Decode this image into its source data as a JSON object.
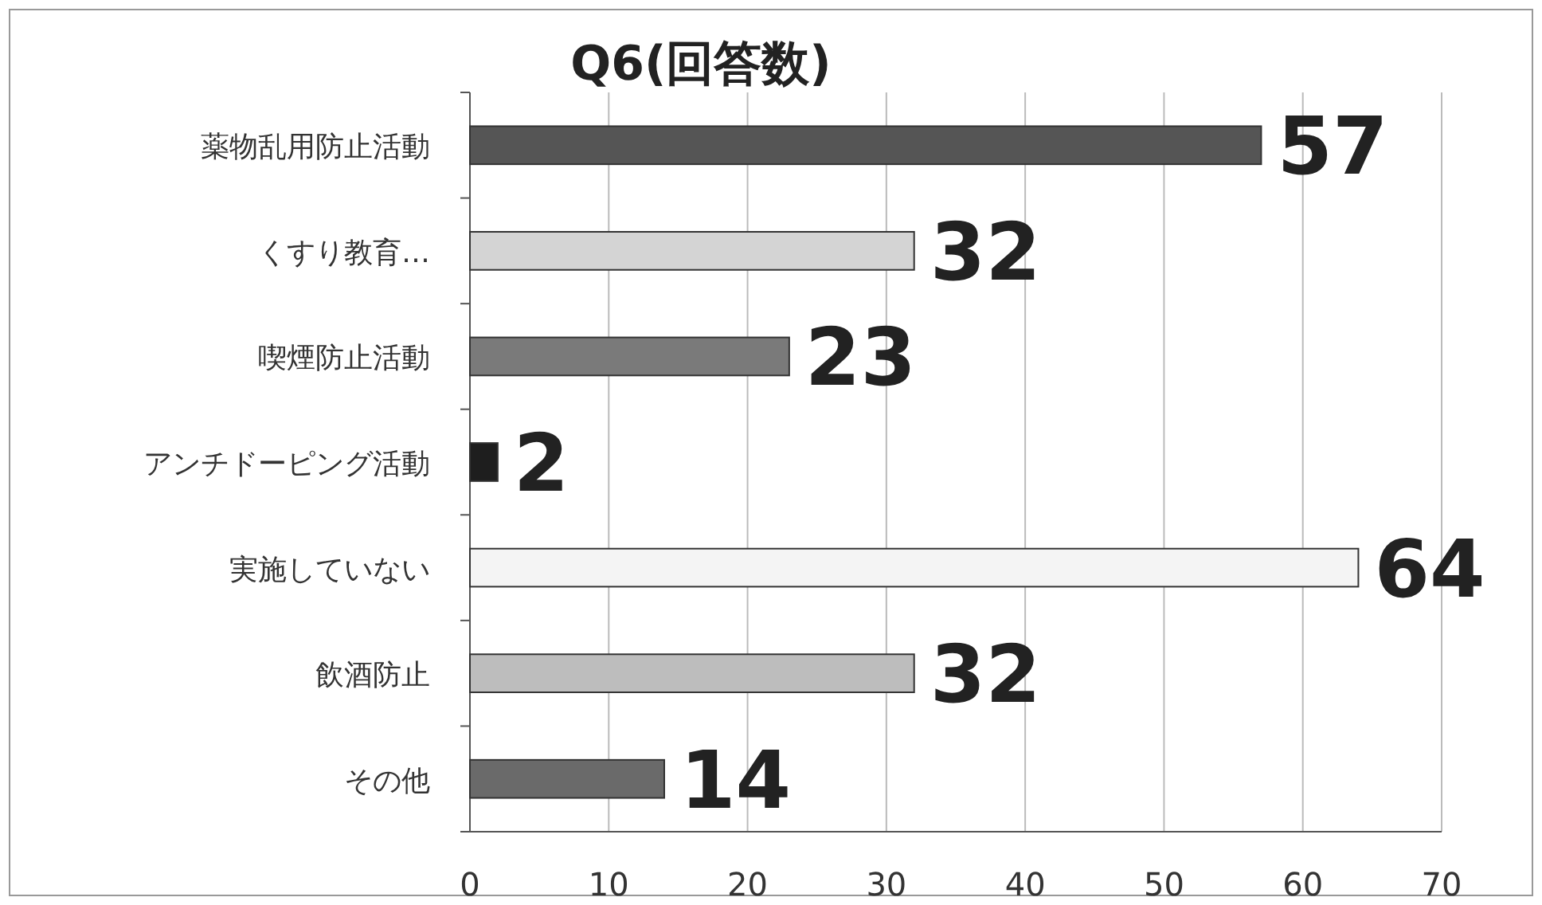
{
  "chart_data": {
    "type": "bar",
    "orientation": "horizontal",
    "title": "Q6(回答数)",
    "categories": [
      "薬物乱用防止活動",
      "くすり教育…",
      "喫煙防止活動",
      "アンチドーピング活動",
      "実施していない",
      "飲酒防止",
      "その他"
    ],
    "values": [
      57,
      32,
      23,
      2,
      64,
      32,
      14
    ],
    "colors": [
      "#555555",
      "#d4d4d4",
      "#7a7a7a",
      "#1e1e1e",
      "#f4f4f4",
      "#bdbdbd",
      "#6a6a6a"
    ],
    "xlim": [
      0,
      70
    ],
    "xticks": [
      0,
      10,
      20,
      30,
      40,
      50,
      60,
      70
    ],
    "grid": "x",
    "data_labels": true
  }
}
